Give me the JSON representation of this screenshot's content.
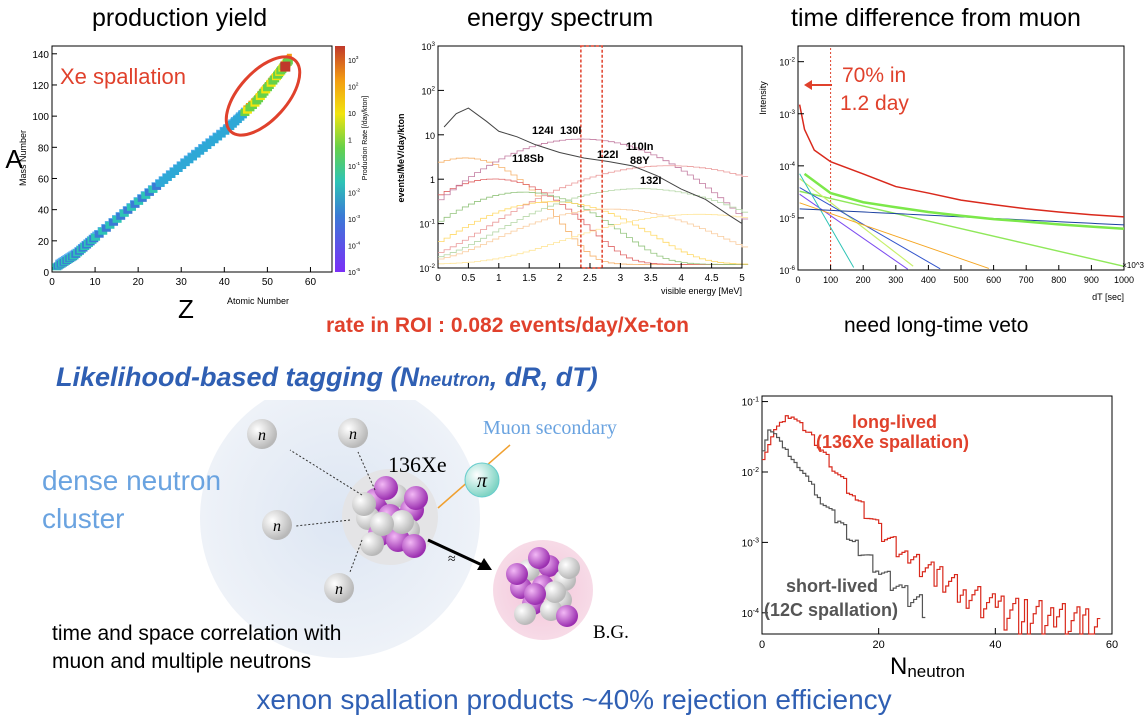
{
  "panels": {
    "yield": {
      "title": "production yield",
      "xlabel": "Atomic Number",
      "ylabel": "Mass Number",
      "big_x": "Z",
      "big_y": "A",
      "xticks": [
        "0",
        "10",
        "20",
        "30",
        "40",
        "50",
        "60"
      ],
      "yticks": [
        "0",
        "20",
        "40",
        "60",
        "80",
        "100",
        "120",
        "140"
      ],
      "zlabel": "Production Rate [/day/kton]",
      "zticks": [
        "10^3",
        "10^2",
        "10",
        "1",
        "10^-1",
        "10^-2",
        "10^-3",
        "10^-4",
        "10^-5"
      ],
      "annotation": "Xe spallation"
    },
    "spectrum": {
      "title": "energy spectrum",
      "xlabel": "visible energy [MeV]",
      "ylabel": "events/MeV/day/kton",
      "xticks": [
        "0",
        "0.5",
        "1",
        "1.5",
        "2",
        "2.5",
        "3",
        "3.5",
        "4",
        "4.5",
        "5"
      ],
      "yticks": [
        "10^3",
        "10^2",
        "10",
        "1",
        "10^-1",
        "10^-2"
      ],
      "labels": [
        "124I",
        "130I",
        "118Sb",
        "122I",
        "110In",
        "88Y",
        "132I"
      ],
      "rate_text": "rate in ROI : 0.082 events/day/Xe-ton"
    },
    "timediff": {
      "title": "time difference from muon",
      "xlabel": "dT [sec]",
      "ylabel": "Intensity",
      "xticks": [
        "0",
        "100",
        "200",
        "300",
        "400",
        "500",
        "600",
        "700",
        "800",
        "900",
        "1000"
      ],
      "yticks": [
        "10^-2",
        "10^-3",
        "10^-4",
        "10^-5",
        "10^-6"
      ],
      "x_mult": "×10^3",
      "annotation_line1": "70% in",
      "annotation_line2": "1.2 day",
      "caption": "need long-time veto"
    },
    "neutron": {
      "xlabel_main": "N",
      "xlabel_sub": "neutron",
      "xticks": [
        "0",
        "20",
        "40",
        "60"
      ],
      "yticks": [
        "10^-1",
        "10^-2",
        "10^-3",
        "10^-4"
      ],
      "long_label_1": "long-lived",
      "long_label_2": "(136Xe spallation)",
      "short_label_1": "short-lived",
      "short_label_2": "(12C spallation)"
    }
  },
  "tagging": {
    "heading_main": "Likelihood-based tagging (N",
    "heading_sub": "neutron",
    "heading_tail": ", dR, dT)",
    "cluster_line1": "dense neutron",
    "cluster_line2": "cluster",
    "muon_secondary": "Muon secondary",
    "xe_label": "136Xe",
    "pi": "π",
    "n": "n",
    "bg": "B.G.",
    "corr_line1": "time and space correlation with",
    "corr_line2": "muon and multiple neutrons"
  },
  "footer": "xenon spallation products ~40% rejection efficiency",
  "colors": {
    "red": "#e0412c",
    "blue": "#2f5fb3",
    "lightblue": "#6aa3e0",
    "purple": "#b04cc2"
  },
  "chart_data": [
    {
      "type": "heatmap",
      "title": "production yield",
      "xlabel": "Atomic Number",
      "ylabel": "Mass Number",
      "xlim": [
        0,
        65
      ],
      "ylim": [
        0,
        145
      ],
      "band": [
        [
          1,
          3
        ],
        [
          5,
          10
        ],
        [
          10,
          22
        ],
        [
          20,
          45
        ],
        [
          30,
          68
        ],
        [
          40,
          90
        ],
        [
          47,
          108
        ],
        [
          52,
          125
        ],
        [
          55,
          136
        ]
      ]
    },
    {
      "type": "line",
      "title": "energy spectrum",
      "xlabel": "visible energy [MeV]",
      "ylabel": "events/MeV/day/kton",
      "xlim": [
        0,
        5
      ],
      "ylim": [
        0.01,
        1000
      ],
      "yscale": "log",
      "roi": [
        2.35,
        2.7
      ],
      "series": [
        {
          "x": [
            0.1,
            0.3,
            0.5,
            0.8,
            1.0,
            1.3,
            1.6,
            2.0,
            2.4,
            2.8,
            3.2,
            3.6,
            4.0,
            4.4,
            4.8,
            5.0
          ],
          "values": [
            15,
            30,
            40,
            20,
            12,
            9,
            6,
            4,
            3,
            2.5,
            2,
            1.2,
            0.6,
            0.35,
            0.15,
            0.1
          ]
        }
      ],
      "labels": [
        "124I",
        "130I",
        "118Sb",
        "122I",
        "110In",
        "88Y",
        "132I"
      ]
    },
    {
      "type": "line",
      "title": "time difference from muon",
      "xlabel": "dT [sec]",
      "ylabel": "Intensity",
      "xlim": [
        0,
        1000
      ],
      "ylim": [
        1e-06,
        0.02
      ],
      "yscale": "log",
      "series": [
        {
          "x": [
            5,
            20,
            50,
            100,
            200,
            300,
            400,
            500,
            600,
            700,
            800,
            900,
            1000
          ],
          "values": [
            0.0015,
            0.0005,
            0.0002,
            0.00012,
            7e-05,
            4e-05,
            3e-05,
            2.2e-05,
            1.8e-05,
            1.5e-05,
            1.3e-05,
            1.15e-05,
            1.05e-05
          ]
        },
        {
          "x": [
            20,
            100,
            200,
            300,
            400,
            500,
            600,
            700,
            800,
            900,
            1000
          ],
          "values": [
            7e-05,
            3e-05,
            2e-05,
            1.6e-05,
            1.3e-05,
            1.1e-05,
            9.5e-06,
            8.5e-06,
            7.5e-06,
            6.8e-06,
            6.2e-06
          ]
        }
      ]
    },
    {
      "type": "line",
      "xlabel": "Nneutron",
      "xlim": [
        0,
        60
      ],
      "ylim": [
        5e-05,
        0.12
      ],
      "yscale": "log",
      "series": [
        {
          "x": [
            0,
            2,
            4,
            5,
            8,
            12,
            16,
            20,
            25,
            30,
            35,
            40,
            45,
            50,
            55,
            58
          ],
          "values": [
            0.015,
            0.04,
            0.06,
            0.062,
            0.035,
            0.012,
            0.004,
            0.0015,
            0.0006,
            0.00035,
            0.0002,
            0.00012,
            0.0001,
            9e-05,
            7e-05,
            6e-05
          ]
        },
        {
          "x": [
            0,
            1,
            2,
            4,
            6,
            8,
            10,
            13,
            16,
            20,
            24,
            28
          ],
          "values": [
            0.02,
            0.04,
            0.035,
            0.02,
            0.012,
            0.007,
            0.004,
            0.002,
            0.0009,
            0.0004,
            0.0002,
            0.00012
          ]
        }
      ]
    }
  ]
}
